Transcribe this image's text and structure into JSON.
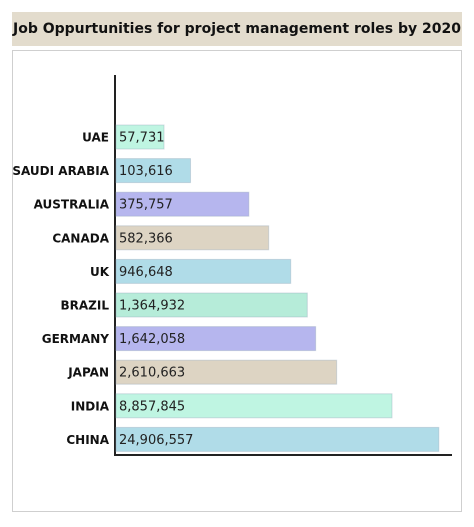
{
  "chart_data": {
    "type": "bar",
    "orientation": "horizontal",
    "title": "Job Oppurtunities for project management roles by 2020",
    "categories": [
      "UAE",
      "SAUDI ARABIA",
      "AUSTRALIA",
      "CANADA",
      "UK",
      "BRAZIL",
      "GERMANY",
      "JAPAN",
      "INDIA",
      "CHINA"
    ],
    "values": [
      57731,
      103616,
      375757,
      582366,
      946648,
      1364932,
      1642058,
      2610663,
      8857845,
      24906557
    ],
    "value_labels": [
      "57,731",
      "103,616",
      "375,757",
      "582,366",
      "946,648",
      "1,364,932",
      "1,642,058",
      "2,610,663",
      "8,857,845",
      "24,906,557"
    ],
    "colors": [
      "#bff5e2",
      "#b0dce8",
      "#b6b6ee",
      "#ddd4c3",
      "#b0dce8",
      "#b6ecd9",
      "#b6b6ee",
      "#ddd4c3",
      "#bff5e2",
      "#b0dce8"
    ],
    "log_scale": true,
    "xlim": [
      20000,
      25000000
    ]
  }
}
